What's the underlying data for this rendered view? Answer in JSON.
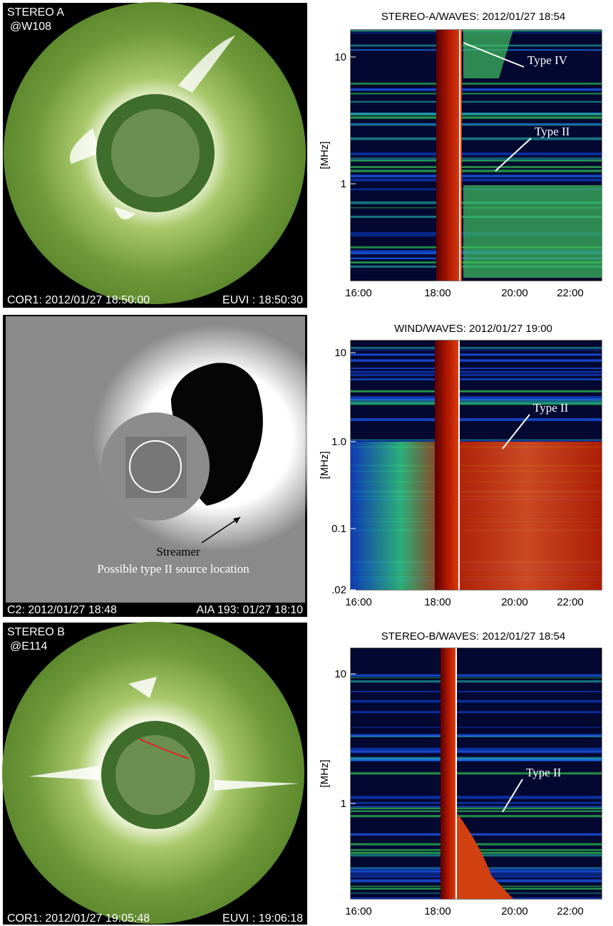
{
  "images": [
    {
      "labels": [
        "STEREO A",
        "@W108"
      ],
      "footer_left": "COR1: 2012/01/27 18:50:00",
      "footer_right": "EUVI : 18:50:30"
    },
    {
      "labels": [
        "Streamer",
        "Possible type II source location"
      ],
      "footer_left": "C2: 2012/01/27 18:48",
      "footer_right": "AIA 193: 01/27 18:10"
    },
    {
      "labels": [
        "STEREO B",
        "@E114"
      ],
      "footer_left": "COR1: 2012/01/27 19:05:48",
      "footer_right": "EUVI : 19:06:18"
    }
  ],
  "spectra": [
    {
      "title": "STEREO-A/WAVES: 2012/01/27 18:54",
      "y_label": "[MHz]",
      "yticks": [
        "10",
        "1"
      ],
      "xticks": [
        "16:00",
        "18:00",
        "20:00",
        "22:00"
      ],
      "annotations": [
        "Type IV",
        "Type II"
      ]
    },
    {
      "title": "WIND/WAVES: 2012/01/27 19:00",
      "y_label": "[MHz]",
      "yticks": [
        "10",
        "1.0",
        "0.1",
        ".02"
      ],
      "xticks": [
        "16:00",
        "18:00",
        "20:00",
        "22:00"
      ],
      "annotations": [
        "Type II"
      ]
    },
    {
      "title": "STEREO-B/WAVES: 2012/01/27 18:54",
      "y_label": "[MHz]",
      "yticks": [
        "10",
        "1"
      ],
      "xticks": [
        "16:00",
        "18:00",
        "20:00",
        "22:00"
      ],
      "annotations": [
        "Type II"
      ]
    }
  ]
}
